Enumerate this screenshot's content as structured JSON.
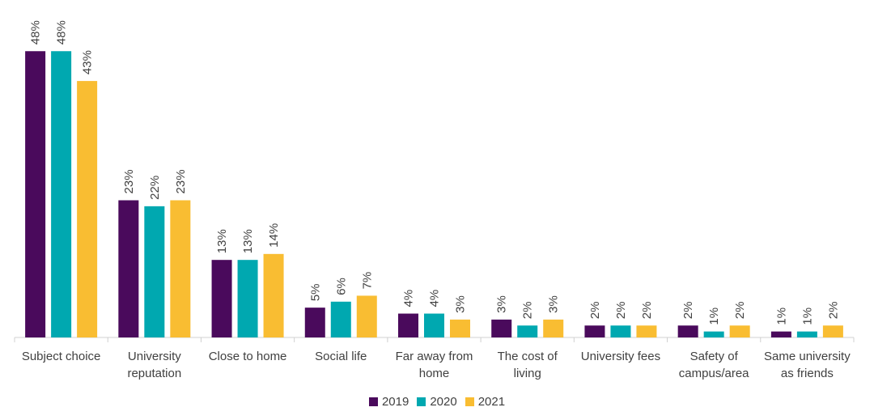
{
  "chart_data": {
    "type": "bar",
    "categories": [
      [
        "Subject choice"
      ],
      [
        "University",
        "reputation"
      ],
      [
        "Close to home"
      ],
      [
        "Social life"
      ],
      [
        "Far away from",
        "home"
      ],
      [
        "The cost of",
        "living"
      ],
      [
        "University fees"
      ],
      [
        "Safety of",
        "campus/area"
      ],
      [
        "Same university",
        "as friends"
      ]
    ],
    "series": [
      {
        "name": "2019",
        "color": "#4a0a5c",
        "values": [
          48,
          23,
          13,
          5,
          4,
          3,
          2,
          2,
          1
        ],
        "labels": [
          "48%",
          "23%",
          "13%",
          "5%",
          "4%",
          "3%",
          "2%",
          "2%",
          "1%"
        ]
      },
      {
        "name": "2020",
        "color": "#00a8b0",
        "values": [
          48,
          22,
          13,
          6,
          4,
          2,
          2,
          1,
          1
        ],
        "labels": [
          "48%",
          "22%",
          "13%",
          "6%",
          "4%",
          "2%",
          "2%",
          "1%",
          "1%"
        ]
      },
      {
        "name": "2021",
        "color": "#f9bd32",
        "values": [
          43,
          23,
          14,
          7,
          3,
          3,
          2,
          2,
          2
        ],
        "labels": [
          "43%",
          "23%",
          "14%",
          "7%",
          "3%",
          "3%",
          "2%",
          "2%",
          "2%"
        ]
      }
    ],
    "ylim": [
      0,
      50
    ],
    "grid": false,
    "legend_position": "bottom"
  }
}
